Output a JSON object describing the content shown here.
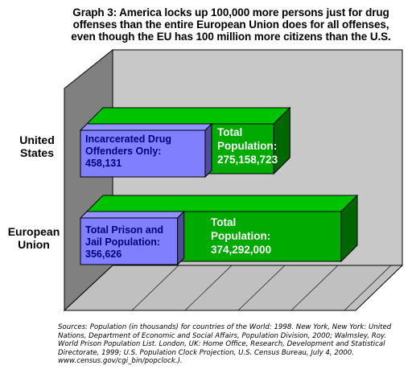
{
  "title_lines": [
    "Graph 3:  America locks up 100,000 more persons just for drug",
    "offenses than the entire European Union does for all offenses,",
    "even though the EU has 100 million more citizens than the U.S."
  ],
  "chart_data": {
    "type": "bar",
    "orientation": "horizontal",
    "categories": [
      "United States",
      "European Union"
    ],
    "series": [
      {
        "values": [
          458131,
          356626
        ],
        "labels": [
          "Incarcerated Drug\nOffenders Only:\n458,131",
          "Total Prison and\nJail Population:\n356,626"
        ],
        "color": "#8080ff"
      },
      {
        "values": [
          275158723,
          374292000
        ],
        "labels": [
          "Total\nPopulation:\n275,158,723",
          "Total\nPopulation:\n374,292,000"
        ],
        "color": "#00aa00"
      }
    ]
  },
  "category_labels": [
    "United\nStates",
    "European\nUnion"
  ],
  "sources": "Sources: Population (in thousands) for countries of the World: 1998. New York, New York: United Nations, Department of Economic and Social Affairs, Population Division, 2000; Walmsley, Roy. World Prison Population List. London, UK: Home Office, Research, Development and Statistical Directorate, 1999; U.S. Population Clock Projection, U.S. Census Bureau, July 4, 2000. www.census.gov/cgi_bin/popclock.)."
}
